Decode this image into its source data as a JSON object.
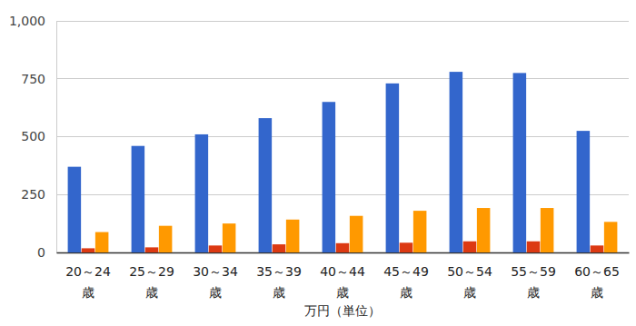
{
  "chart_data": {
    "type": "bar",
    "x_label": "万円（単位）",
    "categories": [
      "20～24\n歳",
      "25～29\n歳",
      "30～34\n歳",
      "35～39\n歳",
      "40～44\n歳",
      "45～49\n歳",
      "50～54\n歳",
      "55～59\n歳",
      "60～65\n歳"
    ],
    "series": [
      {
        "color": "#3366cc",
        "values": [
          370,
          460,
          510,
          580,
          650,
          730,
          780,
          775,
          525
        ]
      },
      {
        "color": "#dc3912",
        "values": [
          18,
          22,
          30,
          35,
          40,
          42,
          48,
          48,
          30
        ]
      },
      {
        "color": "#ff9900",
        "values": [
          88,
          115,
          125,
          142,
          158,
          180,
          192,
          192,
          132
        ]
      }
    ],
    "ylim": [
      0,
      1000
    ],
    "yticks": [
      0,
      250,
      500,
      750,
      {
        "value": 1000,
        "label": "1,000"
      }
    ],
    "grid": true
  }
}
